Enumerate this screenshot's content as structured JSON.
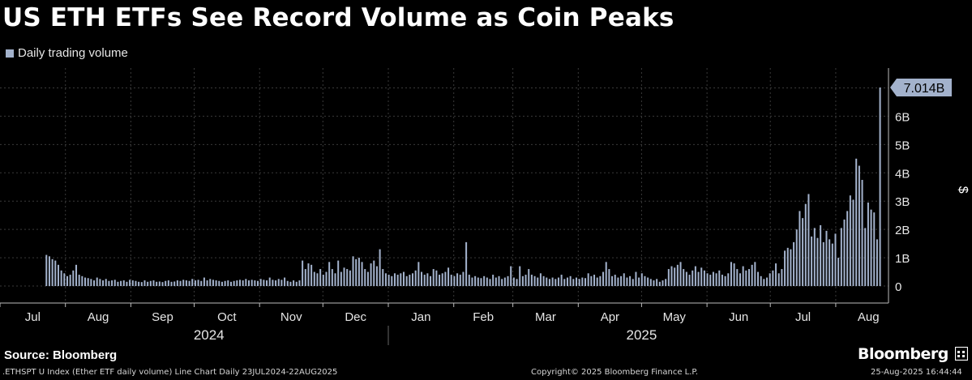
{
  "title": "US ETH ETFs See Record Volume as Coin Peaks",
  "legend_label": "Daily trading volume",
  "source": "Source: Bloomberg",
  "brand": "Bloomberg",
  "footer": {
    "left": ".ETHSPT U Index (Ether ETF daily volume) Line Chart  Daily 23JUL2024-22AUG2025",
    "middle": "Copyright© 2025 Bloomberg Finance L.P.",
    "right": "25-Aug-2025 16:44:44"
  },
  "colors": {
    "bars": "#a3b2cc",
    "background": "#000000",
    "grid": "#3a3a3a",
    "callout": "#a3b2cc"
  },
  "icons": [
    "bloomberg-terminal-icon"
  ],
  "chart_data": {
    "type": "bar",
    "x_type": "date",
    "x_range": [
      "2024-07-23",
      "2025-08-22"
    ],
    "ylabel": "$",
    "ylim": [
      -0.6,
      7.7
    ],
    "yticks": [
      0,
      1,
      2,
      3,
      4,
      5,
      6
    ],
    "ytick_labels": [
      "0",
      "1B",
      "2B",
      "3B",
      "4B",
      "5B",
      "6B"
    ],
    "grid": true,
    "last_value_label": "7.014B",
    "x_month_labels": [
      {
        "label": "Jul",
        "date": "2024-07-01"
      },
      {
        "label": "Aug",
        "date": "2024-08-01"
      },
      {
        "label": "Sep",
        "date": "2024-09-01"
      },
      {
        "label": "Oct",
        "date": "2024-10-01"
      },
      {
        "label": "Nov",
        "date": "2024-11-01"
      },
      {
        "label": "Dec",
        "date": "2024-12-01"
      },
      {
        "label": "Jan",
        "date": "2025-01-01"
      },
      {
        "label": "Feb",
        "date": "2025-02-01"
      },
      {
        "label": "Mar",
        "date": "2025-03-01"
      },
      {
        "label": "Apr",
        "date": "2025-04-01"
      },
      {
        "label": "May",
        "date": "2025-05-01"
      },
      {
        "label": "Jun",
        "date": "2025-06-01"
      },
      {
        "label": "Jul",
        "date": "2025-07-01"
      },
      {
        "label": "Aug",
        "date": "2025-08-01"
      }
    ],
    "year_labels": [
      {
        "label": "2024",
        "date": "2024-10-08"
      },
      {
        "label": "2025",
        "date": "2025-05-01"
      }
    ],
    "year_divider": "2025-01-01",
    "series": [
      {
        "unit": "billion USD",
        "values": [
          1.1,
          1.05,
          0.95,
          0.9,
          0.75,
          0.55,
          0.45,
          0.35,
          0.4,
          0.55,
          0.75,
          0.4,
          0.35,
          0.3,
          0.28,
          0.25,
          0.2,
          0.3,
          0.25,
          0.2,
          0.25,
          0.18,
          0.2,
          0.22,
          0.15,
          0.18,
          0.2,
          0.15,
          0.22,
          0.2,
          0.18,
          0.15,
          0.14,
          0.2,
          0.15,
          0.18,
          0.2,
          0.15,
          0.16,
          0.14,
          0.18,
          0.2,
          0.15,
          0.16,
          0.2,
          0.18,
          0.22,
          0.2,
          0.18,
          0.25,
          0.2,
          0.22,
          0.18,
          0.3,
          0.2,
          0.25,
          0.22,
          0.2,
          0.18,
          0.15,
          0.18,
          0.2,
          0.15,
          0.18,
          0.2,
          0.22,
          0.2,
          0.25,
          0.2,
          0.22,
          0.2,
          0.18,
          0.25,
          0.22,
          0.2,
          0.3,
          0.22,
          0.2,
          0.25,
          0.22,
          0.3,
          0.18,
          0.15,
          0.2,
          0.15,
          0.2,
          0.9,
          0.6,
          0.8,
          0.75,
          0.5,
          0.45,
          0.6,
          0.4,
          0.5,
          0.85,
          0.6,
          0.45,
          0.9,
          0.5,
          0.65,
          0.6,
          0.55,
          1.05,
          0.95,
          1.0,
          0.85,
          0.6,
          0.5,
          0.8,
          0.9,
          0.7,
          1.3,
          0.6,
          0.45,
          0.4,
          0.35,
          0.45,
          0.4,
          0.45,
          0.5,
          0.35,
          0.4,
          0.45,
          0.55,
          0.85,
          0.5,
          0.4,
          0.45,
          0.35,
          0.6,
          0.55,
          0.4,
          0.45,
          0.5,
          0.65,
          0.4,
          0.35,
          0.45,
          0.4,
          0.5,
          1.55,
          0.4,
          0.3,
          0.35,
          0.3,
          0.28,
          0.35,
          0.3,
          0.25,
          0.4,
          0.3,
          0.35,
          0.25,
          0.3,
          0.35,
          0.7,
          0.3,
          0.25,
          0.7,
          0.35,
          0.4,
          0.6,
          0.4,
          0.35,
          0.3,
          0.45,
          0.35,
          0.3,
          0.25,
          0.3,
          0.25,
          0.3,
          0.4,
          0.25,
          0.3,
          0.35,
          0.25,
          0.3,
          0.25,
          0.3,
          0.28,
          0.45,
          0.35,
          0.4,
          0.3,
          0.35,
          0.5,
          0.85,
          0.6,
          0.35,
          0.4,
          0.3,
          0.35,
          0.45,
          0.3,
          0.35,
          0.25,
          0.5,
          0.3,
          0.45,
          0.35,
          0.3,
          0.25,
          0.2,
          0.25,
          0.15,
          0.2,
          0.25,
          0.6,
          0.7,
          0.65,
          0.75,
          0.85,
          0.6,
          0.5,
          0.4,
          0.55,
          0.7,
          0.5,
          0.65,
          0.55,
          0.45,
          0.4,
          0.5,
          0.45,
          0.55,
          0.4,
          0.35,
          0.45,
          0.85,
          0.8,
          0.6,
          0.45,
          0.7,
          0.55,
          0.6,
          0.75,
          0.85,
          0.5,
          0.35,
          0.25,
          0.3,
          0.45,
          0.55,
          0.8,
          0.45,
          0.6,
          1.25,
          1.35,
          1.3,
          1.55,
          2.0,
          2.65,
          2.4,
          2.9,
          3.25,
          1.75,
          2.05,
          1.7,
          2.15,
          1.55,
          1.95,
          1.65,
          1.5,
          1.85,
          1.0,
          2.05,
          2.35,
          2.65,
          3.2,
          3.05,
          4.5,
          4.25,
          3.75,
          2.05,
          2.95,
          2.7,
          2.6,
          1.65,
          7.014
        ]
      }
    ]
  }
}
